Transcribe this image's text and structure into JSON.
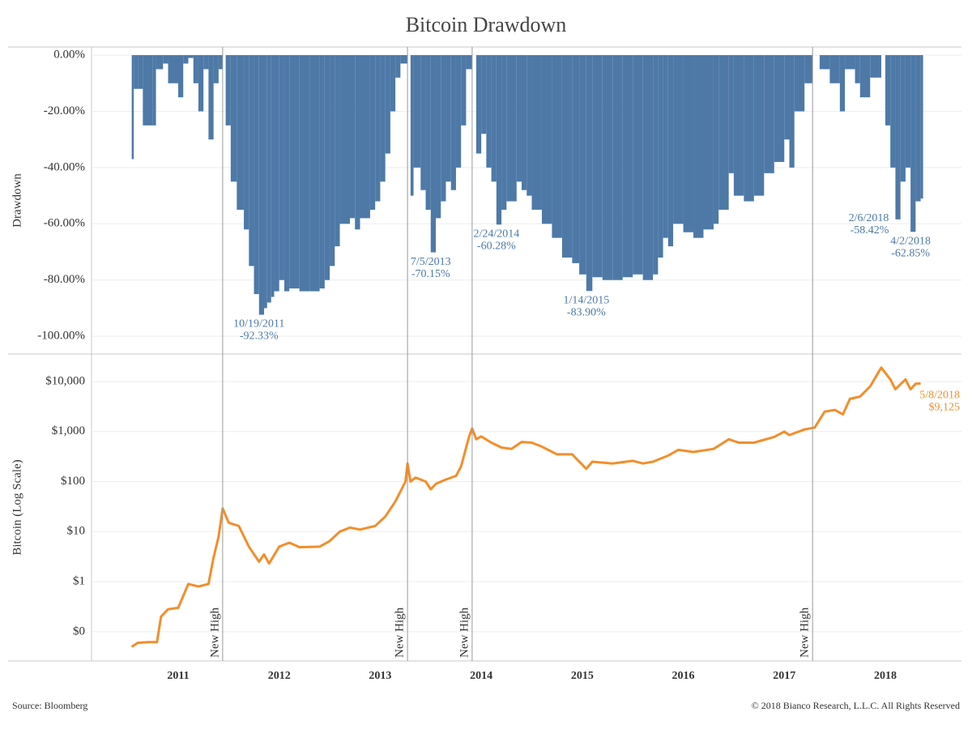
{
  "title": "Bitcoin Drawdown",
  "source": "Source: Bloomberg",
  "copyright": "© 2018 Bianco Research, L.L.C. All Rights Reserved",
  "markers": [
    {
      "x": 2011.44,
      "label": "New High"
    },
    {
      "x": 2013.27,
      "label": "New High"
    },
    {
      "x": 2013.91,
      "label": "New High"
    },
    {
      "x": 2017.28,
      "label": "New High"
    }
  ],
  "chart_data": [
    {
      "type": "bar",
      "y_label": "Drawdown",
      "color": "#4e79a7",
      "grid": true,
      "xlim": [
        2010.142,
        2018.754
      ],
      "ylim": [
        -106.3,
        2.9
      ],
      "yticks": [
        {
          "value": 0,
          "label": "0.00%"
        },
        {
          "value": -20,
          "label": "-20.00%"
        },
        {
          "value": -40,
          "label": "-40.00%"
        },
        {
          "value": -60,
          "label": "-60.00%"
        },
        {
          "value": -80,
          "label": "-80.00%"
        },
        {
          "value": -100,
          "label": "-100.00%"
        }
      ],
      "x": [
        2010.54,
        2010.56,
        2010.6,
        2010.65,
        2010.75,
        2010.78,
        2010.85,
        2010.9,
        2011.0,
        2011.05,
        2011.1,
        2011.15,
        2011.2,
        2011.25,
        2011.3,
        2011.35,
        2011.4,
        2011.44,
        2011.47,
        2011.52,
        2011.58,
        2011.65,
        2011.7,
        2011.75,
        2011.8,
        2011.85,
        2011.88,
        2011.92,
        2011.95,
        2012.0,
        2012.05,
        2012.1,
        2012.2,
        2012.3,
        2012.4,
        2012.45,
        2012.5,
        2012.55,
        2012.6,
        2012.7,
        2012.75,
        2012.8,
        2012.9,
        2012.95,
        2013.0,
        2013.05,
        2013.1,
        2013.15,
        2013.2,
        2013.27,
        2013.3,
        2013.33,
        2013.4,
        2013.45,
        2013.5,
        2013.55,
        2013.6,
        2013.65,
        2013.7,
        2013.75,
        2013.8,
        2013.85,
        2013.91,
        2013.95,
        2014.0,
        2014.05,
        2014.1,
        2014.15,
        2014.2,
        2014.25,
        2014.35,
        2014.4,
        2014.45,
        2014.5,
        2014.6,
        2014.7,
        2014.8,
        2014.9,
        2014.97,
        2015.04,
        2015.1,
        2015.2,
        2015.3,
        2015.4,
        2015.5,
        2015.6,
        2015.7,
        2015.75,
        2015.8,
        2015.85,
        2015.9,
        2016.0,
        2016.1,
        2016.2,
        2016.3,
        2016.35,
        2016.45,
        2016.5,
        2016.6,
        2016.7,
        2016.8,
        2016.9,
        2017.0,
        2017.05,
        2017.1,
        2017.2,
        2017.28,
        2017.35,
        2017.45,
        2017.55,
        2017.6,
        2017.7,
        2017.75,
        2017.85,
        2017.96,
        2018.0,
        2018.05,
        2018.1,
        2018.15,
        2018.2,
        2018.25,
        2018.3,
        2018.35
      ],
      "values": [
        -37,
        -12,
        -12,
        -25,
        -25,
        -5,
        -3,
        -10,
        -15,
        -3,
        -1,
        -10,
        -20,
        -5,
        -30,
        -10,
        -5,
        0,
        -25,
        -45,
        -55,
        -62,
        -75,
        -85,
        -92.33,
        -90,
        -88,
        -86,
        -84,
        -80,
        -84,
        -83,
        -84,
        -84,
        -83,
        -80,
        -75,
        -68,
        -60,
        -58,
        -62,
        -58,
        -55,
        -52,
        -45,
        -35,
        -20,
        -8,
        -3,
        0,
        -50,
        -40,
        -48,
        -55,
        -70.15,
        -58,
        -52,
        -45,
        -48,
        -40,
        -25,
        -5,
        0,
        -35,
        -28,
        -40,
        -45,
        -60.28,
        -55,
        -52,
        -45,
        -48,
        -50,
        -55,
        -60,
        -65,
        -72,
        -74,
        -78,
        -83.9,
        -79,
        -80,
        -80,
        -79,
        -78,
        -80,
        -78,
        -72,
        -65,
        -68,
        -60,
        -63,
        -65,
        -62,
        -60,
        -55,
        -42,
        -50,
        -52,
        -50,
        -42,
        -38,
        -30,
        -40,
        -20,
        -10,
        0,
        -5,
        -10,
        -20,
        -5,
        -10,
        -15,
        -8,
        0,
        -25,
        -40,
        -58.42,
        -45,
        -40,
        -62.85,
        -52,
        -51
      ],
      "annotations": [
        {
          "x": 2011.8,
          "y": -92.33,
          "date": "10/19/2011",
          "label": "-92.33%",
          "position": "below"
        },
        {
          "x": 2013.5,
          "y": -70.15,
          "date": "7/5/2013",
          "label": "-70.15%",
          "position": "below"
        },
        {
          "x": 2014.15,
          "y": -60.28,
          "date": "2/24/2014",
          "label": "-60.28%",
          "position": "below"
        },
        {
          "x": 2015.04,
          "y": -83.9,
          "date": "1/14/2015",
          "label": "-83.90%",
          "position": "below"
        },
        {
          "x": 2018.1,
          "y": -58.42,
          "date": "2/6/2018",
          "label": "-58.42%",
          "position": "left"
        },
        {
          "x": 2018.25,
          "y": -62.85,
          "date": "4/2/2018",
          "label": "-62.85%",
          "position": "below"
        }
      ]
    },
    {
      "type": "line",
      "y_label": "Bitcoin (Log Scale)",
      "color": "#f28e2b",
      "grid": true,
      "log_scale": true,
      "xlim": [
        2010.142,
        2018.754
      ],
      "xticks": [
        2011,
        2012,
        2013,
        2014,
        2015,
        2016,
        2017,
        2018
      ],
      "ylim": [
        0.026,
        35500
      ],
      "yticks": [
        {
          "value": 0.1,
          "label": "$0"
        },
        {
          "value": 1,
          "label": "$1"
        },
        {
          "value": 10,
          "label": "$10"
        },
        {
          "value": 100,
          "label": "$100"
        },
        {
          "value": 1000,
          "label": "$1,000"
        },
        {
          "value": 10000,
          "label": "$10,000"
        }
      ],
      "x": [
        2010.54,
        2010.6,
        2010.7,
        2010.79,
        2010.83,
        2010.9,
        2011.0,
        2011.1,
        2011.2,
        2011.3,
        2011.35,
        2011.4,
        2011.44,
        2011.5,
        2011.6,
        2011.7,
        2011.8,
        2011.85,
        2011.9,
        2012.0,
        2012.1,
        2012.2,
        2012.4,
        2012.5,
        2012.6,
        2012.7,
        2012.8,
        2012.95,
        2013.05,
        2013.15,
        2013.25,
        2013.27,
        2013.3,
        2013.35,
        2013.45,
        2013.5,
        2013.55,
        2013.65,
        2013.75,
        2013.8,
        2013.88,
        2013.91,
        2013.95,
        2014.0,
        2014.1,
        2014.2,
        2014.3,
        2014.4,
        2014.5,
        2014.6,
        2014.75,
        2014.9,
        2015.04,
        2015.1,
        2015.3,
        2015.5,
        2015.6,
        2015.7,
        2015.85,
        2015.95,
        2016.1,
        2016.3,
        2016.45,
        2016.55,
        2016.7,
        2016.9,
        2017.0,
        2017.05,
        2017.2,
        2017.3,
        2017.4,
        2017.5,
        2017.58,
        2017.65,
        2017.75,
        2017.85,
        2017.96,
        2018.05,
        2018.1,
        2018.2,
        2018.25,
        2018.3,
        2018.35
      ],
      "values": [
        0.05,
        0.06,
        0.062,
        0.062,
        0.2,
        0.28,
        0.3,
        0.9,
        0.8,
        0.9,
        3,
        8,
        29,
        15,
        13,
        5,
        2.5,
        3.5,
        2.3,
        5,
        6,
        4.9,
        5,
        6.5,
        10,
        12,
        11,
        13,
        20,
        40,
        100,
        230,
        100,
        120,
        100,
        70,
        90,
        110,
        130,
        200,
        800,
        1150,
        700,
        800,
        600,
        480,
        450,
        620,
        600,
        500,
        350,
        350,
        180,
        250,
        230,
        260,
        230,
        250,
        330,
        430,
        390,
        450,
        700,
        600,
        600,
        780,
        1000,
        850,
        1100,
        1200,
        2500,
        2700,
        2200,
        4500,
        5000,
        8000,
        19000,
        11000,
        7000,
        11000,
        7000,
        9000,
        9125
      ],
      "annotations": [
        {
          "x": 2018.35,
          "y": 9125,
          "date": "5/8/2018",
          "label": "$9,125",
          "position": "right"
        }
      ]
    }
  ]
}
